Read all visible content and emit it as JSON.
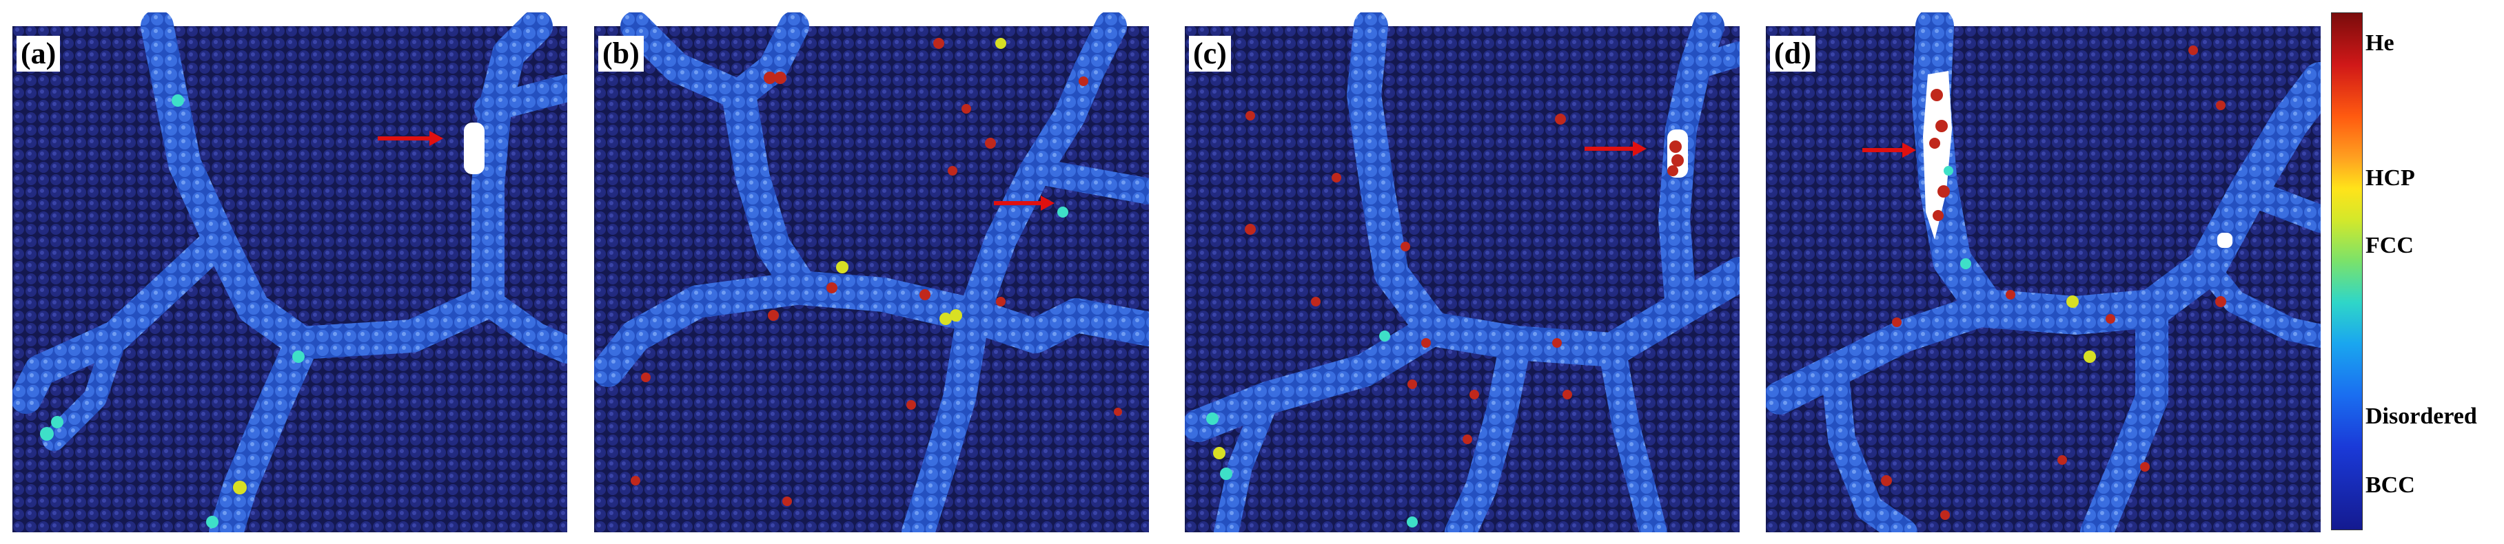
{
  "panels": [
    {
      "label": "(a)"
    },
    {
      "label": "(b)"
    },
    {
      "label": "(c)"
    },
    {
      "label": "(d)"
    }
  ],
  "legend": {
    "labels": [
      "He",
      "HCP",
      "FCC",
      "Disordered",
      "BCC"
    ]
  },
  "colors": {
    "bcc": "#1a1f6b",
    "disordered": "#2f5fd8",
    "fcc": "#3ee0c8",
    "hcp": "#d8e024",
    "he": "#c0281c",
    "arrow": "#e01010"
  }
}
